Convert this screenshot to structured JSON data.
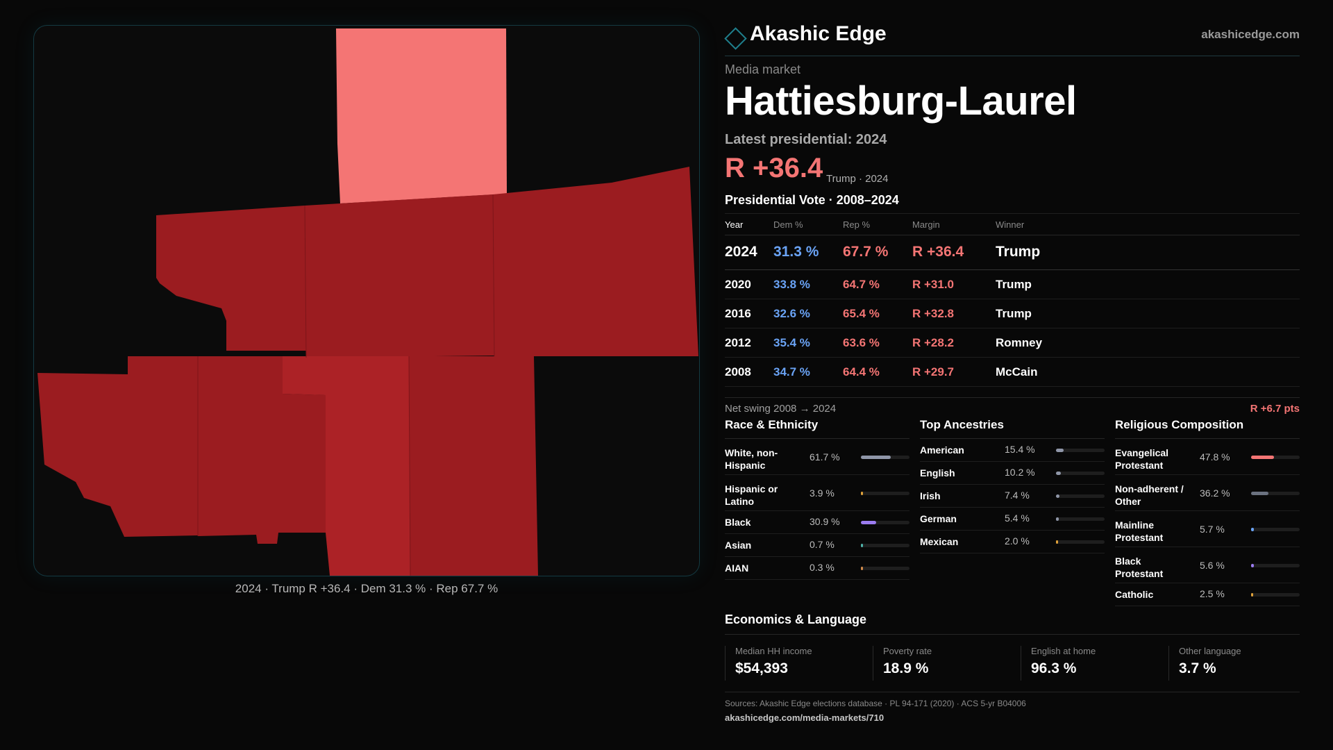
{
  "brand": {
    "name": "Akashic Edge",
    "url": "akashicedge.com"
  },
  "header": {
    "kicker": "Media market",
    "title": "Hattiesburg-Laurel",
    "latest_label": "Latest presidential: 2024",
    "headline_margin": "R +36.4",
    "headline_sub": "Trump · 2024"
  },
  "map": {
    "caption": "2024 · Trump R +36.4 · Dem 31.3 % · Rep 67.7 %",
    "colors": {
      "light_rep": "#f47574",
      "rep": "#9b1c20",
      "mid_rep": "#ac2226"
    }
  },
  "vote_table": {
    "heading": "Presidential Vote · 2008–2024",
    "columns": [
      "Year",
      "Dem %",
      "Rep %",
      "Margin",
      "Winner"
    ],
    "rows": [
      {
        "year": "2024",
        "dem": "31.3 %",
        "rep": "67.7 %",
        "margin": "R +36.4",
        "winner": "Trump"
      },
      {
        "year": "2020",
        "dem": "33.8 %",
        "rep": "64.7 %",
        "margin": "R +31.0",
        "winner": "Trump"
      },
      {
        "year": "2016",
        "dem": "32.6 %",
        "rep": "65.4 %",
        "margin": "R +32.8",
        "winner": "Trump"
      },
      {
        "year": "2012",
        "dem": "35.4 %",
        "rep": "63.6 %",
        "margin": "R +28.2",
        "winner": "Romney"
      },
      {
        "year": "2008",
        "dem": "34.7 %",
        "rep": "64.4 %",
        "margin": "R +29.7",
        "winner": "McCain"
      }
    ],
    "swing_label": "Net swing 2008 → 2024",
    "swing_value": "R +6.7 pts"
  },
  "demographics": {
    "race": {
      "heading": "Race & Ethnicity",
      "rows": [
        {
          "label": "White, non-Hispanic",
          "value": "61.7 %",
          "pct": 61.7,
          "color": "#8f96a8"
        },
        {
          "label": "Hispanic or Latino",
          "value": "3.9 %",
          "pct": 3.9,
          "color": "#e0a23a"
        },
        {
          "label": "Black",
          "value": "30.9 %",
          "pct": 30.9,
          "color": "#9b7cf0"
        },
        {
          "label": "Asian",
          "value": "0.7 %",
          "pct": 0.7,
          "color": "#4fb3a9"
        },
        {
          "label": "AIAN",
          "value": "0.3 %",
          "pct": 0.3,
          "color": "#d08a4a"
        }
      ]
    },
    "ancestry": {
      "heading": "Top Ancestries",
      "rows": [
        {
          "label": "American",
          "value": "15.4 %",
          "pct": 15.4,
          "color": "#8f96a8"
        },
        {
          "label": "English",
          "value": "10.2 %",
          "pct": 10.2,
          "color": "#8f96a8"
        },
        {
          "label": "Irish",
          "value": "7.4 %",
          "pct": 7.4,
          "color": "#8f96a8"
        },
        {
          "label": "German",
          "value": "5.4 %",
          "pct": 5.4,
          "color": "#8f96a8"
        },
        {
          "label": "Mexican",
          "value": "2.0 %",
          "pct": 2.0,
          "color": "#e0a23a"
        }
      ]
    },
    "religion": {
      "heading": "Religious Composition",
      "rows": [
        {
          "label": "Evangelical Protestant",
          "value": "47.8 %",
          "pct": 47.8,
          "color": "#f47574"
        },
        {
          "label": "Non-adherent / Other",
          "value": "36.2 %",
          "pct": 36.2,
          "color": "#6b7280"
        },
        {
          "label": "Mainline Protestant",
          "value": "5.7 %",
          "pct": 5.7,
          "color": "#6aa3f5"
        },
        {
          "label": "Black Protestant",
          "value": "5.6 %",
          "pct": 5.6,
          "color": "#9b7cf0"
        },
        {
          "label": "Catholic",
          "value": "2.5 %",
          "pct": 2.5,
          "color": "#e0a23a"
        }
      ]
    }
  },
  "economics": {
    "heading": "Economics & Language",
    "cells": [
      {
        "label": "Median HH income",
        "value": "$54,393"
      },
      {
        "label": "Poverty rate",
        "value": "18.9 %"
      },
      {
        "label": "English at home",
        "value": "96.3 %"
      },
      {
        "label": "Other language",
        "value": "3.7 %"
      }
    ]
  },
  "footer": {
    "sources": "Sources: Akashic Edge elections database · PL 94-171 (2020) · ACS 5-yr B04006",
    "url": "akashicedge.com/media-markets/710"
  }
}
